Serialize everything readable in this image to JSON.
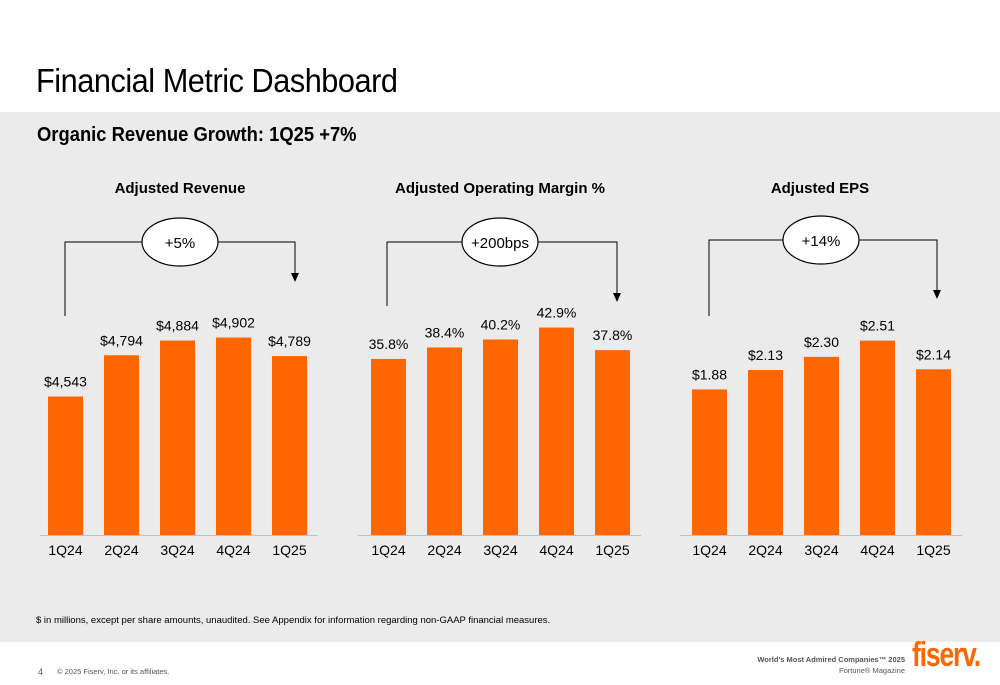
{
  "page": {
    "title": "Financial Metric Dashboard",
    "subtitle": "Organic Revenue Growth: 1Q25 +7%",
    "footnote": "$ in millions, except per share amounts, unaudited. See Appendix for information regarding non-GAAP financial measures.",
    "page_number": "4",
    "copyright": "© 2025 Fiserv, Inc. or its affiliates.",
    "award_line1": "World's Most Admired Companies™ 2025",
    "award_line2": "Fortune® Magazine",
    "logo_text": "fiserv."
  },
  "colors": {
    "bar": "#ff6600",
    "panel": "#ebebeb",
    "brand": "#ff6600"
  },
  "chart_data": [
    {
      "type": "bar",
      "title": "Adjusted Revenue",
      "categories": [
        "1Q24",
        "2Q24",
        "3Q24",
        "4Q24",
        "1Q25"
      ],
      "values": [
        4543,
        4794,
        4884,
        4902,
        4789
      ],
      "labels": [
        "$4,543",
        "$4,794",
        "$4,884",
        "$4,902",
        "$4,789"
      ],
      "ylim": [
        3700,
        5100
      ],
      "change_label": "+5%"
    },
    {
      "type": "bar",
      "title": "Adjusted Operating Margin %",
      "categories": [
        "1Q24",
        "2Q24",
        "3Q24",
        "4Q24",
        "1Q25"
      ],
      "values": [
        35.8,
        38.4,
        40.2,
        42.9,
        37.8
      ],
      "labels": [
        "35.8%",
        "38.4%",
        "40.2%",
        "42.9%",
        "37.8%"
      ],
      "ylim": [
        -4,
        48
      ],
      "change_label": "+200bps"
    },
    {
      "type": "bar",
      "title": "Adjusted EPS",
      "categories": [
        "1Q24",
        "2Q24",
        "3Q24",
        "4Q24",
        "1Q25"
      ],
      "values": [
        1.88,
        2.13,
        2.3,
        2.51,
        2.14
      ],
      "labels": [
        "$1.88",
        "$2.13",
        "$2.30",
        "$2.51",
        "$2.14"
      ],
      "ylim": [
        0,
        2.97
      ],
      "change_label": "+14%"
    }
  ]
}
